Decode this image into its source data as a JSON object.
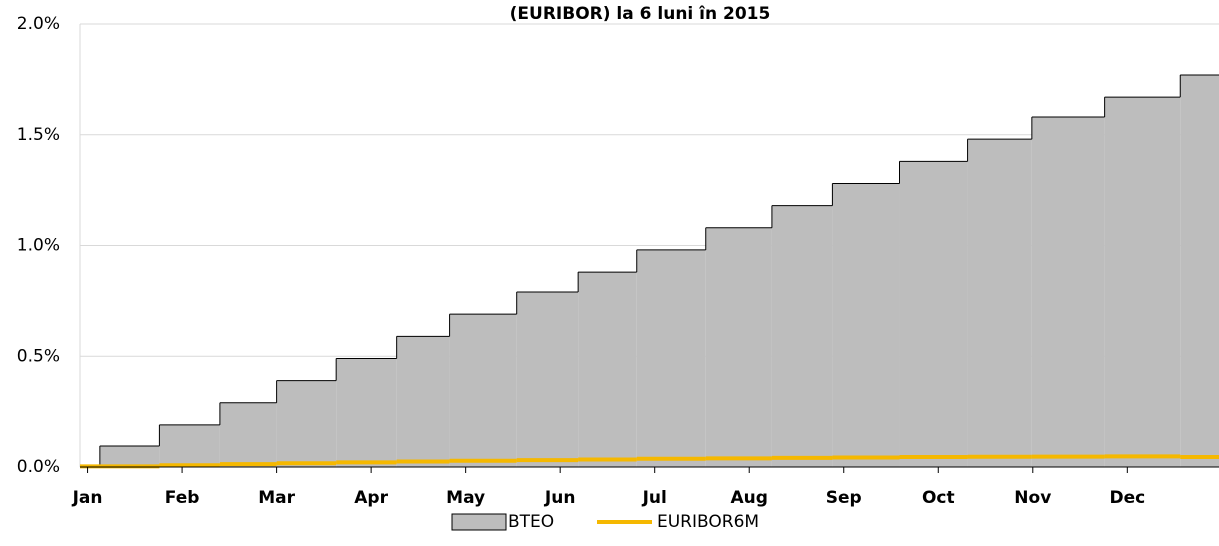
{
  "chart_data": {
    "type": "step-area",
    "title": "(EURIBOR) la 6 luni în 2015",
    "xlim": [
      -0.08,
      11.97
    ],
    "xticks": [
      {
        "value": 0,
        "label": "Jan"
      },
      {
        "value": 1,
        "label": "Feb"
      },
      {
        "value": 2,
        "label": "Mar"
      },
      {
        "value": 3,
        "label": "Apr"
      },
      {
        "value": 4,
        "label": "May"
      },
      {
        "value": 5,
        "label": "Jun"
      },
      {
        "value": 6,
        "label": "Jul"
      },
      {
        "value": 7,
        "label": "Aug"
      },
      {
        "value": 8,
        "label": "Sep"
      },
      {
        "value": 9,
        "label": "Oct"
      },
      {
        "value": 10,
        "label": "Nov"
      },
      {
        "value": 11,
        "label": "Dec"
      }
    ],
    "ylim": [
      0,
      2
    ],
    "yticks": [
      {
        "value": 0,
        "label": "0.0%"
      },
      {
        "value": 0.5,
        "label": "0.5%"
      },
      {
        "value": 1,
        "label": "1.0%"
      },
      {
        "value": 1.5,
        "label": "1.5%"
      },
      {
        "value": 2,
        "label": "2.0%"
      }
    ],
    "grid": true,
    "legend": "bottom",
    "series": [
      {
        "name": "BTEO",
        "kind": "area",
        "color": "#bdbdbd",
        "x": [
          -0.08,
          0.13,
          0.76,
          1.4,
          2.0,
          2.63,
          3.27,
          3.83,
          4.54,
          5.19,
          5.81,
          6.54,
          7.24,
          7.88,
          8.59,
          9.31,
          9.99,
          10.76,
          11.56
        ],
        "values": [
          0,
          0.095,
          0.19,
          0.29,
          0.39,
          0.49,
          0.59,
          0.69,
          0.79,
          0.88,
          0.98,
          1.08,
          1.18,
          1.28,
          1.38,
          1.48,
          1.58,
          1.67,
          1.77
        ]
      },
      {
        "name": "EURIBOR6M",
        "kind": "line",
        "color": "#f5b800",
        "x": [
          -0.08,
          0.76,
          1.4,
          2.0,
          2.63,
          3.27,
          3.83,
          4.54,
          5.19,
          5.81,
          6.54,
          7.24,
          7.88,
          8.59,
          9.31,
          9.99,
          10.76,
          11.56
        ],
        "values": [
          0.003,
          0.008,
          0.013,
          0.017,
          0.021,
          0.025,
          0.028,
          0.031,
          0.034,
          0.037,
          0.039,
          0.041,
          0.043,
          0.045,
          0.046,
          0.047,
          0.048,
          0.045
        ]
      }
    ]
  }
}
